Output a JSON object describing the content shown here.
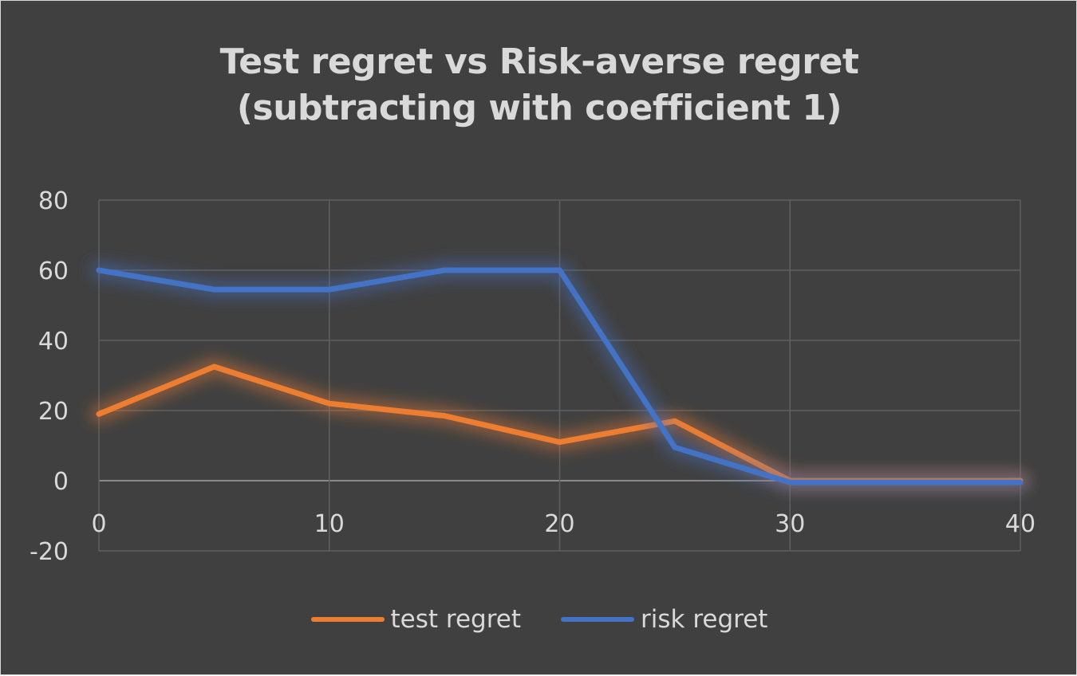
{
  "chart_data": {
    "type": "line",
    "title_lines": [
      "Test regret vs Risk-averse regret",
      "(subtracting with coefficient 1)"
    ],
    "xlabel": "",
    "ylabel": "",
    "xlim": [
      0,
      40
    ],
    "ylim": [
      -20,
      80
    ],
    "x_ticks": [
      0,
      10,
      20,
      30,
      40
    ],
    "y_ticks": [
      -20,
      0,
      20,
      40,
      60,
      80
    ],
    "x_tick_labels": [
      "0",
      "10",
      "20",
      "30",
      "40"
    ],
    "y_tick_labels": [
      "-20",
      "0",
      "20",
      "40",
      "60",
      "80"
    ],
    "grid": true,
    "legend_position": "bottom",
    "series": [
      {
        "name": "test regret",
        "color": "#ed7d31",
        "x": [
          0,
          5,
          10,
          15,
          20,
          25,
          30,
          35,
          40
        ],
        "y": [
          19,
          32.5,
          22,
          18.5,
          11,
          17,
          0,
          0,
          0
        ]
      },
      {
        "name": "risk regret",
        "color": "#4472c4",
        "x": [
          0,
          5,
          10,
          15,
          20,
          25,
          30,
          35,
          40
        ],
        "y": [
          60,
          54.5,
          54.5,
          60,
          60,
          9.5,
          -0.5,
          -0.5,
          -0.5
        ]
      }
    ]
  }
}
